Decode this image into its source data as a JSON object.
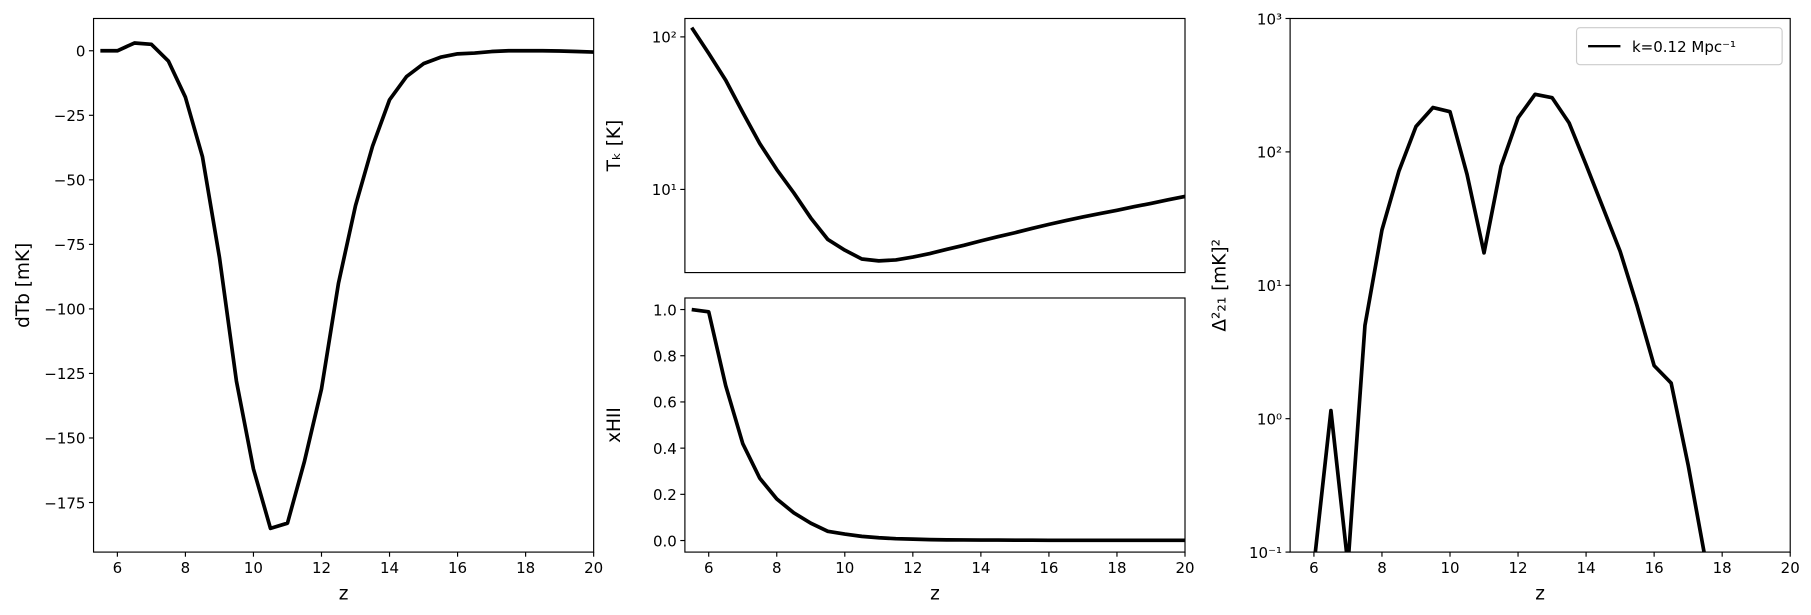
{
  "chart_data": [
    {
      "type": "line",
      "xlabel": "z",
      "ylabel": "dTb [mK]",
      "x": [
        5.5,
        6,
        6.5,
        7,
        7.5,
        8,
        8.5,
        9,
        9.5,
        10,
        10.5,
        11,
        11.5,
        12,
        12.5,
        13,
        13.5,
        14,
        14.5,
        15,
        15.5,
        16,
        16.5,
        17,
        17.5,
        18,
        18.5,
        19,
        19.5,
        20
      ],
      "series": [
        {
          "color": "#000000",
          "values": [
            0,
            0,
            3,
            2.5,
            -4,
            -18,
            -41,
            -80,
            -128,
            -162,
            -185,
            -183,
            -159,
            -131,
            -90,
            -60,
            -37,
            -19,
            -10,
            -5,
            -2.5,
            -1.2,
            -0.9,
            -0.3,
            0,
            0,
            0,
            -0.1,
            -0.3,
            -0.5
          ]
        }
      ],
      "xlim": [
        5.3,
        20
      ],
      "ylim": [
        -194.2,
        12.5
      ],
      "xticks": [
        6,
        8,
        10,
        12,
        14,
        16,
        18,
        20
      ],
      "yticks": [
        {
          "value": -175,
          "label": "−175"
        },
        {
          "value": -150,
          "label": "−150"
        },
        {
          "value": -125,
          "label": "−125"
        },
        {
          "value": -100,
          "label": "−100"
        },
        {
          "value": -75,
          "label": "−75"
        },
        {
          "value": -50,
          "label": "−50"
        },
        {
          "value": -25,
          "label": "−25"
        },
        0
      ],
      "log_y": false
    },
    {
      "type": "line",
      "ylabel": "Tₖ [K]",
      "x": [
        5.5,
        6,
        6.5,
        7,
        7.5,
        8,
        8.5,
        9,
        9.5,
        10,
        10.5,
        11,
        11.5,
        12,
        12.5,
        13,
        13.5,
        14,
        14.5,
        15,
        15.5,
        16,
        16.5,
        17,
        17.5,
        18,
        18.5,
        19,
        19.5,
        20
      ],
      "series": [
        {
          "color": "#000000",
          "values": [
            115,
            78,
            52,
            32,
            20,
            13.5,
            9.5,
            6.5,
            4.7,
            4.0,
            3.5,
            3.4,
            3.45,
            3.6,
            3.8,
            4.05,
            4.3,
            4.6,
            4.9,
            5.2,
            5.55,
            5.9,
            6.25,
            6.6,
            6.95,
            7.3,
            7.7,
            8.1,
            8.55,
            9.0
          ]
        }
      ],
      "xlim": [
        5.3,
        20
      ],
      "ylim": [
        2.85,
        132
      ],
      "yticks": [
        {
          "value": 10,
          "label": "10¹"
        },
        {
          "value": 100,
          "label": "10²"
        }
      ],
      "log_y": true
    },
    {
      "type": "line",
      "xlabel": "z",
      "ylabel": "xHII",
      "x": [
        5.5,
        6,
        6.5,
        7,
        7.5,
        8,
        8.5,
        9,
        9.5,
        10,
        10.5,
        11,
        11.5,
        12,
        12.5,
        13,
        13.5,
        14,
        14.5,
        15,
        15.5,
        16,
        16.5,
        17,
        17.5,
        18,
        18.5,
        19,
        19.5,
        20
      ],
      "series": [
        {
          "color": "#000000",
          "values": [
            1.0,
            0.99,
            0.67,
            0.42,
            0.27,
            0.18,
            0.12,
            0.075,
            0.04,
            0.028,
            0.018,
            0.012,
            0.008,
            0.006,
            0.004,
            0.003,
            0.0025,
            0.002,
            0.002,
            0.0015,
            0.0015,
            0.001,
            0.001,
            0.001,
            0.001,
            0.001,
            0.001,
            0.001,
            0.001,
            0.001
          ]
        }
      ],
      "xlim": [
        5.3,
        20
      ],
      "ylim": [
        -0.05,
        1.05
      ],
      "xticks": [
        6,
        8,
        10,
        12,
        14,
        16,
        18,
        20
      ],
      "yticks": [
        {
          "value": 0,
          "label": "0.0"
        },
        0.2,
        0.4,
        0.6,
        0.8,
        {
          "value": 1,
          "label": "1.0"
        }
      ],
      "log_y": false
    },
    {
      "type": "line",
      "xlabel": "z",
      "ylabel": "Δ²₂₁ [mK]²",
      "x": [
        6,
        6.5,
        7,
        7.5,
        8,
        8.5,
        9,
        9.5,
        10,
        10.5,
        11,
        11.5,
        12,
        12.5,
        13,
        13.5,
        14,
        14.5,
        15,
        15.5,
        16,
        16.5,
        17,
        17.5
      ],
      "series": [
        {
          "name": "k=0.12 Mpc⁻¹",
          "color": "#000000",
          "values": [
            0.08,
            1.15,
            0.08,
            5,
            26,
            72,
            155,
            215,
            200,
            68,
            17.5,
            78,
            180,
            270,
            255,
            165,
            80,
            38,
            18,
            7,
            2.5,
            1.85,
            0.45,
            0.09
          ]
        }
      ],
      "xlim": [
        5.3,
        20
      ],
      "ylim": [
        0.1,
        1000
      ],
      "xticks": [
        6,
        8,
        10,
        12,
        14,
        16,
        18,
        20
      ],
      "yticks": [
        {
          "value": 0.1,
          "label": "10⁻¹"
        },
        {
          "value": 1,
          "label": "10⁰"
        },
        {
          "value": 10,
          "label": "10¹"
        },
        {
          "value": 100,
          "label": "10²"
        },
        {
          "value": 1000,
          "label": "10³"
        }
      ],
      "log_y": true,
      "legend": "upper right"
    }
  ]
}
